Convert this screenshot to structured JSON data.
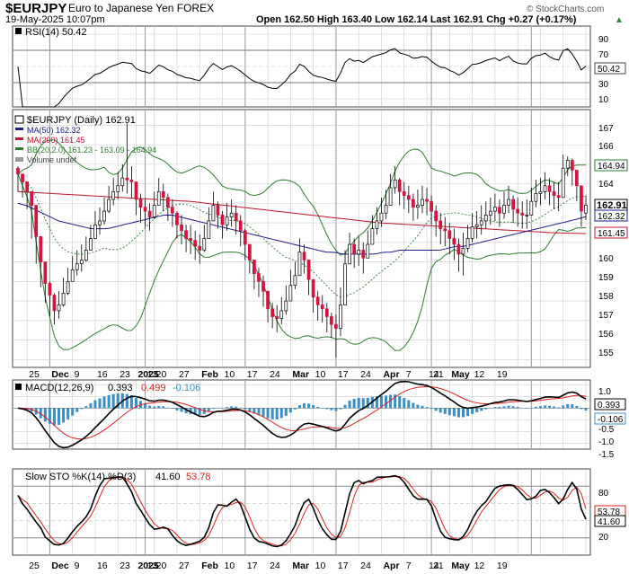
{
  "header": {
    "symbol": "$EURJPY",
    "name": "Euro to Japanese Yen FOREX",
    "date_time": "19-May-2025 10:07pm",
    "watermark": "© StockCharts.com",
    "quote": "Open 162.50  High 163.40  Low 162.14  Last 162.91  Chg +0.27 (+0.17%)",
    "up_arrow": "▲"
  },
  "colors": {
    "up_candle": "#ffffff",
    "down_candle": "#d4143f",
    "ma50": "#1a1a8c",
    "ma200": "#c0142b",
    "bollinger": "#2e7d2e",
    "macd_hist": "#3b8fc7",
    "signal": "#e02020",
    "grid": "#cccccc"
  },
  "rsi_panel": {
    "legend": "RSI(14) 50.42",
    "last_label": "50.42",
    "ticks": [
      "90",
      "70",
      "50",
      "30",
      "10"
    ]
  },
  "price_panel": {
    "legend_main": "$EURJPY (Daily) 162.91",
    "legend_ma50": "MA(50) 162.32",
    "legend_ma200": "MA(200) 161.45",
    "legend_bb": "BB(20,2.0) 161.23 - 163.09 - 164.94",
    "legend_volume": "Volume undef",
    "ticks": [
      "167",
      "166",
      "165",
      "164",
      "163",
      "162",
      "161",
      "160",
      "159",
      "158",
      "157",
      "156",
      "155"
    ],
    "labels": {
      "bb_upper": "164.94",
      "last": "162.91",
      "ma50": "162.32",
      "ma200": "161.45"
    }
  },
  "macd_panel": {
    "legend_prefix": "MACD(12,26,9)",
    "macd_value": "0.393",
    "signal_value": "0.499",
    "hist_value": "-0.106",
    "last_macd": "0.393",
    "last_hist": "-0.106",
    "ticks": [
      "1.0",
      "0.5",
      "0.0",
      "-0.5",
      "-1.0",
      "-1.5"
    ]
  },
  "sto_panel": {
    "legend_prefix": "Slow STO %K(14) %D(3)",
    "k_value": "41.60",
    "d_value": "53.78",
    "last_d": "53.78",
    "last_k": "41.60",
    "ticks": [
      "80",
      "60",
      "40",
      "20"
    ]
  },
  "x_axis": {
    "labels": [
      "25",
      "Dec",
      "9",
      "16",
      "23",
      "2025",
      "13",
      "20",
      "27",
      "Feb",
      "10",
      "17",
      "24",
      "Mar",
      "10",
      "17",
      "24",
      "Apr",
      "7",
      "14",
      "21",
      "May",
      "12",
      "19"
    ]
  },
  "chart_data": {
    "type": "candlestick",
    "title": "$EURJPY Euro to Japanese Yen FOREX",
    "period": "Daily",
    "x": [
      "2024-11-21",
      "2024-11-22",
      "2024-11-25",
      "2024-11-26",
      "2024-11-27",
      "2024-11-28",
      "2024-11-29",
      "2024-12-02",
      "2024-12-03",
      "2024-12-04",
      "2024-12-05",
      "2024-12-06",
      "2024-12-09",
      "2024-12-10",
      "2024-12-11",
      "2024-12-12",
      "2024-12-13",
      "2024-12-16",
      "2024-12-17",
      "2024-12-18",
      "2024-12-19",
      "2024-12-20",
      "2024-12-23",
      "2024-12-24",
      "2024-12-26",
      "2024-12-27",
      "2024-12-30",
      "2024-12-31",
      "2025-01-02",
      "2025-01-03",
      "2025-01-06",
      "2025-01-07",
      "2025-01-08",
      "2025-01-09",
      "2025-01-10",
      "2025-01-13",
      "2025-01-14",
      "2025-01-15",
      "2025-01-16",
      "2025-01-17",
      "2025-01-20",
      "2025-01-21",
      "2025-01-22",
      "2025-01-23",
      "2025-01-24",
      "2025-01-27",
      "2025-01-28",
      "2025-01-29",
      "2025-01-30",
      "2025-01-31",
      "2025-02-03",
      "2025-02-04",
      "2025-02-05",
      "2025-02-06",
      "2025-02-07",
      "2025-02-10",
      "2025-02-11",
      "2025-02-12",
      "2025-02-13",
      "2025-02-14",
      "2025-02-17",
      "2025-02-18",
      "2025-02-19",
      "2025-02-20",
      "2025-02-21",
      "2025-02-24",
      "2025-02-25",
      "2025-02-26",
      "2025-02-27",
      "2025-02-28",
      "2025-03-03",
      "2025-03-04",
      "2025-03-05",
      "2025-03-06",
      "2025-03-07",
      "2025-03-10",
      "2025-03-11",
      "2025-03-12",
      "2025-03-13",
      "2025-03-14",
      "2025-03-17",
      "2025-03-18",
      "2025-03-19",
      "2025-03-20",
      "2025-03-21",
      "2025-03-24",
      "2025-03-25",
      "2025-03-26",
      "2025-03-27",
      "2025-03-28",
      "2025-03-31",
      "2025-04-01",
      "2025-04-02",
      "2025-04-03",
      "2025-04-04",
      "2025-04-07",
      "2025-04-08",
      "2025-04-09",
      "2025-04-10",
      "2025-04-11",
      "2025-04-14",
      "2025-04-15",
      "2025-04-16",
      "2025-04-17",
      "2025-04-18",
      "2025-04-21",
      "2025-04-22",
      "2025-04-23",
      "2025-04-24",
      "2025-04-25",
      "2025-04-28",
      "2025-04-29",
      "2025-04-30",
      "2025-05-01",
      "2025-05-02",
      "2025-05-05",
      "2025-05-06",
      "2025-05-07",
      "2025-05-08",
      "2025-05-09",
      "2025-05-12",
      "2025-05-13",
      "2025-05-14",
      "2025-05-15",
      "2025-05-16",
      "2025-05-19"
    ],
    "close": [
      164.5,
      164.1,
      163.6,
      162.9,
      161.3,
      160.0,
      158.9,
      158.3,
      157.5,
      157.8,
      158.4,
      159.0,
      159.6,
      159.9,
      160.1,
      160.6,
      161.2,
      161.9,
      162.1,
      162.6,
      163.2,
      163.6,
      163.9,
      164.3,
      164.2,
      164.1,
      163.2,
      162.8,
      162.6,
      162.3,
      162.9,
      163.6,
      163.3,
      162.8,
      162.5,
      161.9,
      161.6,
      161.2,
      161.1,
      160.8,
      160.6,
      161.2,
      162.1,
      162.9,
      162.4,
      161.9,
      162.3,
      162.5,
      162.1,
      161.6,
      160.9,
      160.1,
      159.4,
      159.0,
      158.5,
      157.6,
      157.2,
      157.1,
      157.5,
      158.0,
      158.8,
      159.3,
      160.5,
      160.1,
      159.1,
      158.2,
      157.8,
      157.6,
      157.2,
      156.8,
      156.6,
      157.8,
      159.9,
      160.9,
      160.4,
      160.6,
      160.2,
      160.9,
      161.7,
      162.1,
      162.5,
      162.9,
      163.8,
      164.2,
      163.6,
      163.4,
      163.2,
      162.8,
      162.9,
      163.2,
      163.1,
      162.6,
      162.1,
      161.7,
      161.6,
      161.2,
      160.9,
      160.4,
      160.7,
      161.2,
      161.8,
      161.9,
      162.1,
      162.4,
      162.6,
      162.8,
      162.5,
      162.9,
      163.2,
      162.7,
      162.5,
      162.4,
      162.4,
      163.1,
      163.5,
      163.6,
      163.9,
      163.6,
      163.4,
      163.3,
      164.8,
      165.2,
      164.7,
      163.9,
      162.6,
      162.91
    ],
    "high": [
      164.9,
      164.5,
      164.1,
      163.5,
      162.1,
      160.8,
      159.7,
      159.0,
      158.4,
      158.5,
      159.2,
      159.7,
      160.3,
      160.6,
      160.9,
      161.3,
      161.9,
      162.6,
      162.8,
      163.3,
      163.9,
      164.3,
      164.6,
      165.0,
      167.1,
      164.9,
      164.0,
      163.5,
      163.3,
      163.0,
      163.6,
      164.3,
      164.0,
      163.5,
      163.2,
      162.6,
      162.4,
      161.9,
      161.9,
      161.6,
      161.4,
      161.9,
      162.8,
      163.6,
      163.1,
      162.6,
      163.0,
      163.2,
      162.9,
      162.4,
      161.7,
      160.9,
      160.1,
      159.7,
      159.3,
      158.4,
      157.9,
      157.8,
      158.2,
      158.8,
      159.6,
      160.0,
      161.2,
      160.9,
      159.9,
      159.0,
      158.5,
      158.3,
      157.9,
      157.4,
      157.3,
      158.7,
      160.6,
      161.5,
      161.2,
      161.3,
      161.0,
      161.6,
      162.4,
      162.8,
      163.3,
      163.7,
      164.5,
      164.9,
      164.3,
      164.1,
      163.9,
      163.5,
      163.7,
      163.9,
      163.8,
      163.4,
      162.9,
      162.5,
      162.3,
      162.0,
      161.7,
      161.2,
      161.5,
      161.9,
      162.5,
      162.6,
      162.9,
      163.1,
      163.3,
      163.5,
      163.2,
      163.6,
      163.9,
      163.4,
      163.3,
      163.1,
      163.2,
      163.8,
      164.2,
      164.3,
      164.6,
      164.3,
      164.1,
      164.1,
      165.5,
      165.4,
      165.3,
      164.6,
      163.4,
      163.4
    ],
    "low": [
      163.6,
      163.3,
      162.7,
      161.2,
      159.9,
      158.7,
      157.9,
      157.2,
      156.8,
      157.1,
      157.7,
      158.3,
      159.0,
      159.3,
      159.5,
      160.0,
      160.6,
      161.3,
      161.4,
      161.9,
      162.5,
      162.9,
      163.2,
      163.6,
      163.5,
      163.3,
      162.4,
      162.0,
      161.8,
      161.6,
      162.2,
      162.9,
      162.6,
      162.1,
      161.8,
      161.2,
      160.9,
      160.5,
      160.4,
      160.1,
      159.9,
      160.5,
      161.4,
      162.2,
      161.7,
      161.2,
      161.6,
      161.8,
      161.4,
      160.8,
      160.1,
      159.4,
      158.6,
      158.2,
      157.7,
      156.9,
      156.6,
      156.4,
      156.8,
      157.3,
      158.1,
      158.6,
      159.8,
      159.4,
      158.3,
      157.4,
      157.0,
      156.9,
      156.4,
      156.1,
      155.1,
      156.2,
      158.8,
      160.1,
      159.7,
      159.8,
      159.4,
      160.2,
      161.0,
      161.4,
      161.8,
      162.2,
      163.0,
      163.5,
      162.9,
      162.7,
      162.5,
      162.1,
      162.2,
      162.5,
      162.4,
      161.9,
      161.3,
      160.9,
      160.8,
      160.4,
      160.1,
      159.5,
      159.3,
      160.5,
      161.0,
      161.2,
      161.4,
      161.7,
      161.9,
      162.1,
      161.8,
      162.2,
      162.5,
      162.0,
      161.8,
      161.7,
      161.7,
      162.4,
      162.8,
      162.9,
      163.2,
      162.9,
      162.7,
      162.6,
      163.9,
      164.4,
      163.9,
      163.1,
      161.8,
      162.14
    ],
    "ma50": [
      163.0,
      162.9,
      162.7,
      162.5,
      162.3,
      162.1,
      162.0,
      161.9,
      161.8,
      161.7,
      161.7,
      161.7,
      161.8,
      161.9,
      162.0,
      162.1,
      162.2,
      162.3,
      162.4,
      162.4,
      162.3,
      162.2,
      162.1,
      162.0,
      161.9,
      161.8,
      161.7,
      161.6,
      161.5,
      161.4,
      161.3,
      161.2,
      161.1,
      161.0,
      160.9,
      160.8,
      160.7,
      160.6,
      160.5,
      160.5,
      160.4,
      160.4,
      160.4,
      160.4,
      160.4,
      160.5,
      160.5,
      160.6,
      160.6,
      160.6,
      160.6,
      160.6,
      160.6,
      160.7,
      160.8,
      160.8,
      160.9,
      161.0,
      161.1,
      161.2,
      161.3,
      161.4,
      161.5,
      161.6,
      161.7,
      161.8,
      161.9,
      162.0,
      162.1,
      162.2,
      162.32
    ],
    "ma200": [
      163.6,
      163.55,
      163.5,
      163.45,
      163.4,
      163.35,
      163.3,
      163.25,
      163.2,
      163.15,
      163.1,
      163.0,
      162.9,
      162.8,
      162.7,
      162.6,
      162.5,
      162.4,
      162.3,
      162.2,
      162.1,
      162.0,
      161.95,
      161.9,
      161.85,
      161.8,
      161.75,
      161.7,
      161.65,
      161.6,
      161.55,
      161.5,
      161.47,
      161.45
    ],
    "bb_upper": [
      164.94
    ],
    "bb_middle": [
      163.09
    ],
    "bb_lower": [
      161.23
    ],
    "rsi_last": 50.42,
    "macd_last": 0.393,
    "signal_last": 0.499,
    "hist_last": -0.106,
    "sto_k_last": 41.6,
    "sto_d_last": 53.78,
    "price_ylim": [
      154.6,
      167.8
    ],
    "rsi_ylim": [
      0,
      100
    ],
    "macd_ylim": [
      -1.75,
      1.2
    ],
    "sto_ylim": [
      0,
      100
    ],
    "ohlc_last": {
      "open": 162.5,
      "high": 163.4,
      "low": 162.14,
      "close": 162.91,
      "change": 0.27,
      "change_pct": 0.17
    }
  }
}
